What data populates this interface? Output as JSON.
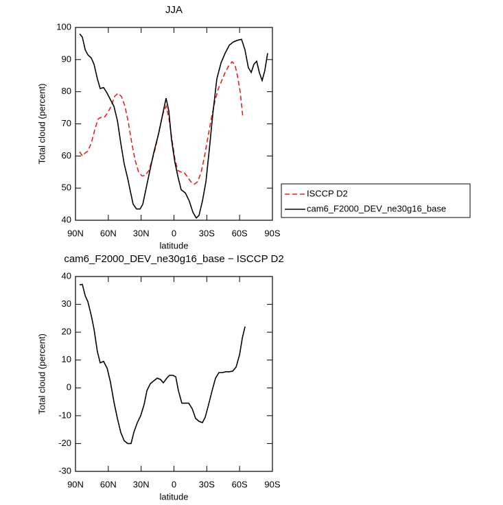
{
  "chart_data": [
    {
      "type": "line",
      "title": "JJA",
      "xlabel": "latitude",
      "ylabel": "Total cloud (percent)",
      "xlim": [
        90,
        -90
      ],
      "xticks": [
        {
          "value": 90,
          "label": "90N"
        },
        {
          "value": 60,
          "label": "60N"
        },
        {
          "value": 30,
          "label": "30N"
        },
        0,
        {
          "value": -30,
          "label": "30S"
        },
        {
          "value": -60,
          "label": "60S"
        },
        {
          "value": -90,
          "label": "90S"
        }
      ],
      "ylim": [
        40,
        100
      ],
      "yticks": [
        40,
        50,
        60,
        70,
        80,
        90,
        100
      ],
      "legend": "outside-right",
      "series": [
        {
          "name": "ISCCP D2",
          "color": "#e8201c",
          "line_style": "dashed",
          "x": [
            86.2,
            83.7,
            81,
            78.7,
            75.6,
            72.5,
            69.4,
            66.8,
            63.7,
            60.5,
            57.4,
            54.3,
            51.1,
            48,
            44.8,
            41.7,
            38.6,
            35.4,
            32.3,
            29.2,
            26,
            22.9,
            19.7,
            16.6,
            13.5,
            10.3,
            7.2,
            4.7,
            2.2,
            -0.9,
            -3.5,
            -6.6,
            -9.1,
            -12.3,
            -15.4,
            -18.6,
            -21.7,
            -24.9,
            -28,
            -31.1,
            -34.3,
            -37.4,
            -40.6,
            -43.7,
            -46.8,
            -50,
            -53.1,
            -55.6,
            -58,
            -60.5,
            -63
          ],
          "values": [
            61.3,
            60,
            61,
            61.5,
            64,
            68,
            71.5,
            72,
            72,
            73.5,
            75.5,
            78.5,
            79.5,
            78.5,
            75.5,
            70.5,
            64,
            58.5,
            55,
            53.8,
            54,
            55.5,
            59,
            63,
            68,
            73,
            75.5,
            72,
            66,
            59,
            55.5,
            55,
            55,
            53.5,
            52,
            51.2,
            52,
            55,
            60,
            66,
            72,
            77,
            81,
            83.5,
            86,
            88,
            89.3,
            88.5,
            85,
            80,
            72
          ]
        },
        {
          "name": "cam6_F2000_DEV_ne30g16_base",
          "color": "#000000",
          "line_style": "solid",
          "x": [
            86.2,
            83.7,
            81,
            78.7,
            75.6,
            73,
            70,
            67.4,
            64.3,
            61,
            58,
            54.9,
            51.7,
            48.6,
            45.5,
            42.3,
            39.8,
            37.3,
            34.2,
            31,
            28.5,
            25.4,
            22.3,
            18.5,
            14,
            10.3,
            7.2,
            4.7,
            2.2,
            -0.9,
            -4,
            -6.6,
            -10.4,
            -14,
            -17.3,
            -20.4,
            -22.9,
            -26,
            -29.2,
            -32.3,
            -35.5,
            -39.2,
            -43,
            -46.8,
            -50.6,
            -54.3,
            -58,
            -61.8,
            -64.9,
            -68,
            -70.6,
            -73,
            -75.6,
            -78,
            -80.6,
            -83,
            -85.6
          ],
          "values": [
            98,
            97,
            93,
            91.5,
            90.5,
            88.5,
            84,
            81,
            81.3,
            79.5,
            77.5,
            75.5,
            71,
            64,
            57.5,
            53,
            49,
            45,
            43.5,
            43.5,
            45,
            50,
            55,
            61,
            67,
            73,
            78,
            74,
            65,
            58,
            53,
            49.5,
            48.5,
            46,
            42.5,
            40.7,
            41.5,
            46,
            52,
            62,
            73,
            84,
            89,
            92,
            94.5,
            95.5,
            96,
            96.3,
            93,
            87.5,
            86,
            88.5,
            89.5,
            86,
            83.5,
            86.5,
            92
          ]
        }
      ]
    },
    {
      "type": "line",
      "title": "cam6_F2000_DEV_ne30g16_base − ISCCP D2",
      "xlabel": "latitude",
      "ylabel": "Total cloud (percent)",
      "xlim": [
        90,
        -90
      ],
      "xticks": [
        {
          "value": 90,
          "label": "90N"
        },
        {
          "value": 60,
          "label": "60N"
        },
        {
          "value": 30,
          "label": "30N"
        },
        0,
        {
          "value": -30,
          "label": "30S"
        },
        {
          "value": -60,
          "label": "60S"
        },
        {
          "value": -90,
          "label": "90S"
        }
      ],
      "ylim": [
        -30,
        40
      ],
      "yticks": [
        -30,
        -20,
        -10,
        0,
        10,
        20,
        30,
        40
      ],
      "color": "#000000",
      "x": [
        86.2,
        83.7,
        81,
        78.7,
        75.6,
        73,
        70,
        67.4,
        64.3,
        61,
        58,
        54.9,
        51.7,
        48.6,
        45.5,
        42.3,
        39.2,
        36.7,
        33.5,
        30.4,
        27.3,
        24.7,
        21.6,
        18.5,
        15.3,
        12.2,
        9.7,
        6.6,
        4.1,
        0.9,
        -1.6,
        -4.1,
        -7.2,
        -10.4,
        -13.5,
        -16.7,
        -19.8,
        -22.9,
        -26,
        -28.6,
        -31.7,
        -34.9,
        -38,
        -41.1,
        -44.3,
        -47.4,
        -50.6,
        -53.7,
        -56.8,
        -60,
        -62.5,
        -65
      ],
      "values": [
        37,
        37.2,
        33,
        31,
        26,
        21,
        13,
        9,
        9.5,
        7,
        2,
        -5,
        -11,
        -16,
        -19,
        -20,
        -20,
        -16,
        -12.5,
        -10,
        -6,
        -1,
        1.5,
        2.5,
        3.5,
        3,
        1.8,
        3.5,
        4.5,
        4.5,
        4,
        -1,
        -5.5,
        -5.5,
        -5.5,
        -7.5,
        -11,
        -12,
        -12.5,
        -10.5,
        -6,
        -1,
        3.5,
        5.5,
        5.5,
        5.8,
        5.8,
        6,
        7.5,
        12,
        18,
        22
      ]
    }
  ]
}
